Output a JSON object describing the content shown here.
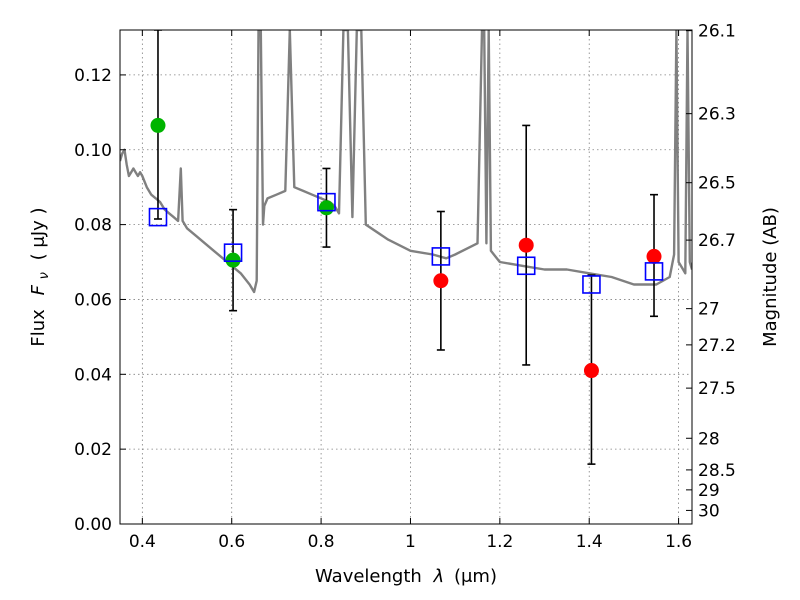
{
  "chart_data": {
    "type": "scatter",
    "xlabel_text": "Wavelength",
    "xlabel_symbol": "λ",
    "xlabel_unit": "(μm)",
    "ylabel_text": "Flux",
    "ylabel_symbol": "F",
    "ylabel_subscript": "ν",
    "ylabel_unit": "( μJy )",
    "y2label": "Magnitude (AB)",
    "xlim": [
      0.35,
      1.63
    ],
    "ylim": [
      0.0,
      0.132
    ],
    "x_ticks": [
      0.4,
      0.6,
      0.8,
      1.0,
      1.2,
      1.4,
      1.6
    ],
    "x_tick_labels": [
      "0.4",
      "0.6",
      "0.8",
      "1",
      "1.2",
      "1.4",
      "1.6"
    ],
    "y_ticks": [
      0.0,
      0.02,
      0.04,
      0.06,
      0.08,
      0.1,
      0.12
    ],
    "y_tick_labels": [
      "0.00",
      "0.02",
      "0.04",
      "0.06",
      "0.08",
      "0.10",
      "0.12"
    ],
    "mag_ticks": [
      26.1,
      26.3,
      26.5,
      26.7,
      27,
      27.2,
      27.5,
      28,
      28.5,
      29,
      30
    ],
    "mag_tick_labels": [
      "26.1",
      "26.3",
      "26.5",
      "26.7",
      "27",
      "27.2",
      "27.5",
      "28",
      "28.5",
      "29",
      "30"
    ],
    "grid": true,
    "colors": {
      "model": "#808080",
      "optical_points": "#00b400",
      "nir_points": "#ff0000",
      "model_photometry": "#0000ff",
      "errorbars": "#000000"
    },
    "series": [
      {
        "name": "model-spectrum",
        "kind": "line",
        "x": [
          0.35,
          0.355,
          0.36,
          0.365,
          0.37,
          0.375,
          0.38,
          0.385,
          0.39,
          0.395,
          0.4,
          0.41,
          0.42,
          0.43,
          0.44,
          0.45,
          0.46,
          0.47,
          0.48,
          0.486,
          0.49,
          0.5,
          0.52,
          0.54,
          0.56,
          0.58,
          0.6,
          0.62,
          0.64,
          0.65,
          0.656,
          0.66,
          0.665,
          0.67,
          0.673,
          0.68,
          0.7,
          0.72,
          0.73,
          0.74,
          0.76,
          0.78,
          0.8,
          0.82,
          0.83,
          0.84,
          0.85,
          0.86,
          0.87,
          0.88,
          0.89,
          0.9,
          0.95,
          1.0,
          1.05,
          1.08,
          1.1,
          1.15,
          1.16,
          1.165,
          1.17,
          1.175,
          1.18,
          1.2,
          1.25,
          1.3,
          1.35,
          1.4,
          1.45,
          1.5,
          1.55,
          1.58,
          1.59,
          1.595,
          1.6,
          1.61,
          1.615,
          1.62,
          1.625,
          1.63
        ],
        "y": [
          0.097,
          0.099,
          0.1,
          0.096,
          0.093,
          0.094,
          0.095,
          0.094,
          0.093,
          0.094,
          0.093,
          0.09,
          0.088,
          0.087,
          0.086,
          0.084,
          0.083,
          0.082,
          0.081,
          0.095,
          0.081,
          0.079,
          0.077,
          0.075,
          0.073,
          0.071,
          0.069,
          0.067,
          0.064,
          0.062,
          0.065,
          0.132,
          0.132,
          0.08,
          0.085,
          0.087,
          0.088,
          0.089,
          0.132,
          0.09,
          0.089,
          0.088,
          0.087,
          0.086,
          0.085,
          0.083,
          0.132,
          0.132,
          0.082,
          0.132,
          0.132,
          0.08,
          0.076,
          0.073,
          0.072,
          0.071,
          0.072,
          0.075,
          0.132,
          0.132,
          0.075,
          0.132,
          0.073,
          0.07,
          0.069,
          0.068,
          0.068,
          0.067,
          0.066,
          0.064,
          0.064,
          0.066,
          0.072,
          0.132,
          0.07,
          0.068,
          0.067,
          0.132,
          0.07,
          0.068
        ]
      },
      {
        "name": "observed-optical",
        "kind": "points",
        "x": [
          0.435,
          0.603,
          0.812
        ],
        "y": [
          0.1065,
          0.0705,
          0.0845
        ],
        "yerr_low": [
          0.0815,
          0.057,
          0.074
        ],
        "yerr_high": [
          0.132,
          0.084,
          0.095
        ]
      },
      {
        "name": "observed-nir",
        "kind": "points",
        "x": [
          1.068,
          1.259,
          1.405,
          1.545
        ],
        "y": [
          0.065,
          0.0745,
          0.041,
          0.0715
        ],
        "yerr_low": [
          0.0465,
          0.0425,
          0.016,
          0.0555
        ],
        "yerr_high": [
          0.0835,
          0.1065,
          0.0665,
          0.088
        ]
      },
      {
        "name": "model-photometry",
        "kind": "squares",
        "x": [
          0.435,
          0.603,
          0.812,
          1.068,
          1.259,
          1.405,
          1.545
        ],
        "y": [
          0.082,
          0.0725,
          0.086,
          0.0715,
          0.069,
          0.064,
          0.0675
        ]
      }
    ]
  }
}
